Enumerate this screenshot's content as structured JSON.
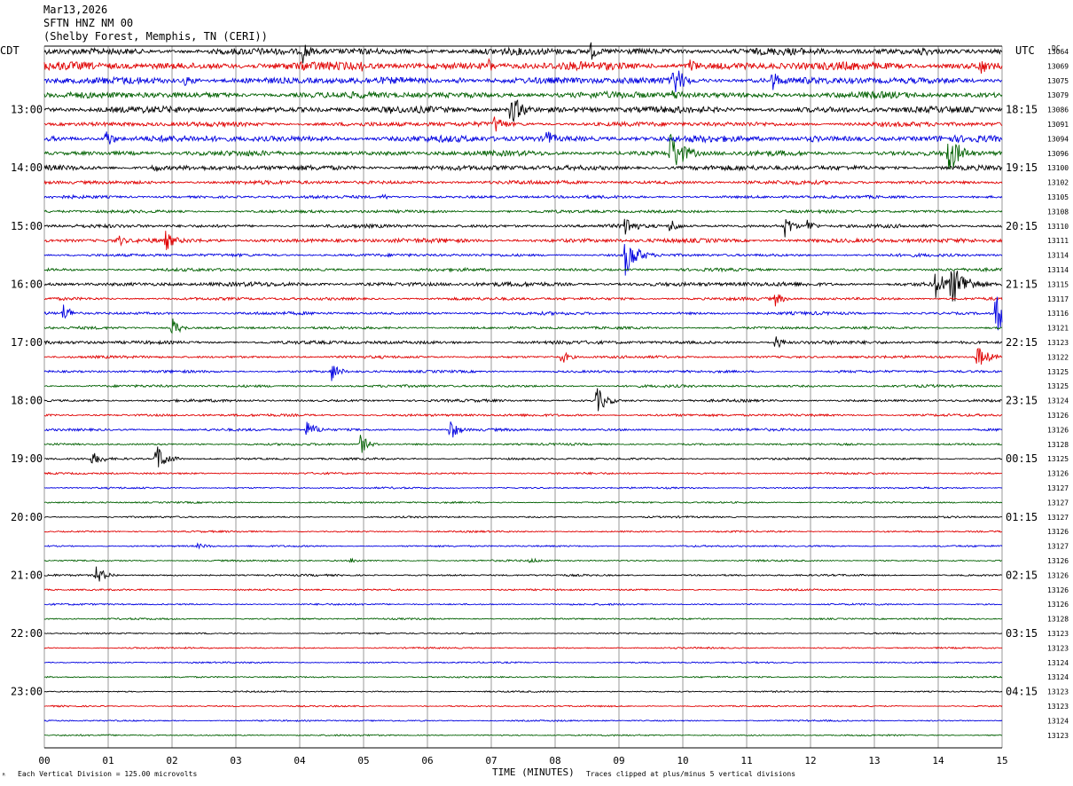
{
  "header": {
    "date": "Mar13,2026",
    "station": "SFTN HNZ NM 00",
    "location": "(Shelby Forest, Memphis, TN (CERI))"
  },
  "left_tz": "CDT",
  "right_tz": "UTC",
  "right_column_label": "DC",
  "left_hour_labels": [
    "13:00",
    "14:00",
    "15:00",
    "16:00",
    "17:00",
    "18:00",
    "19:00",
    "20:00",
    "21:00",
    "22:00",
    "23:00"
  ],
  "right_hour_labels": [
    "18:15",
    "19:15",
    "20:15",
    "21:15",
    "22:15",
    "23:15",
    "00:15",
    "01:15",
    "02:15",
    "03:15",
    "04:15"
  ],
  "footer": {
    "scale_note": "Each Vertical Division =  125.00 microvolts",
    "xlabel": "TIME (MINUTES)",
    "clip_note": "Traces clipped at plus/minus 5 vertical divisions"
  },
  "colors": {
    "trace_cycle": [
      "#000000",
      "#e00000",
      "#0000e0",
      "#006000"
    ],
    "gridline": "#808080"
  },
  "chart_data": {
    "type": "line",
    "title": "SFTN HNZ NM 00",
    "xlabel": "TIME (MINUTES)",
    "x_ticks": [
      "00",
      "01",
      "02",
      "03",
      "04",
      "05",
      "06",
      "07",
      "08",
      "09",
      "10",
      "11",
      "12",
      "13",
      "14",
      "15"
    ],
    "xlim": [
      0,
      15
    ],
    "trace_count": 48,
    "minutes_per_trace": 15,
    "dc_offsets": [
      "13064",
      "13069",
      "13075",
      "13079",
      "13086",
      "13091",
      "13094",
      "13096",
      "13100",
      "13102",
      "13105",
      "13108",
      "13110",
      "13111",
      "13114",
      "13114",
      "13115",
      "13117",
      "13116",
      "13121",
      "13123",
      "13122",
      "13125",
      "13125",
      "13124",
      "13126",
      "13126",
      "13128",
      "13125",
      "13126",
      "13127",
      "13127",
      "13127",
      "13126",
      "13127",
      "13126",
      "13126",
      "13126",
      "13126",
      "13128",
      "13123",
      "13123",
      "13124",
      "13124",
      "13123",
      "13123",
      "13124",
      "13123"
    ],
    "noise_levels": [
      3.2,
      3.8,
      3.2,
      3.0,
      3.0,
      2.2,
      3.0,
      2.4,
      2.4,
      1.8,
      1.4,
      1.4,
      1.6,
      2.0,
      1.4,
      1.4,
      2.0,
      1.4,
      1.4,
      1.2,
      1.6,
      1.2,
      1.2,
      1.2,
      1.2,
      1.2,
      1.2,
      1.0,
      1.0,
      0.9,
      0.8,
      0.8,
      0.8,
      0.8,
      0.8,
      0.8,
      0.9,
      0.8,
      0.8,
      0.8,
      0.7,
      0.7,
      0.7,
      0.7,
      0.7,
      0.7,
      0.7,
      0.7
    ],
    "events": [
      {
        "trace": 0,
        "minute": 4.05,
        "amplitude": 14,
        "duration": 0.2
      },
      {
        "trace": 0,
        "minute": 8.55,
        "amplitude": 12,
        "duration": 0.2
      },
      {
        "trace": 0,
        "minute": 13.7,
        "amplitude": 6,
        "duration": 0.6
      },
      {
        "trace": 1,
        "minute": 4.95,
        "amplitude": 8,
        "duration": 0.15
      },
      {
        "trace": 1,
        "minute": 6.95,
        "amplitude": 10,
        "duration": 0.2
      },
      {
        "trace": 1,
        "minute": 10.1,
        "amplitude": 10,
        "duration": 0.25
      },
      {
        "trace": 1,
        "minute": 14.65,
        "amplitude": 13,
        "duration": 0.2
      },
      {
        "trace": 2,
        "minute": 2.2,
        "amplitude": 6,
        "duration": 0.4
      },
      {
        "trace": 2,
        "minute": 6.45,
        "amplitude": 6,
        "duration": 0.2
      },
      {
        "trace": 2,
        "minute": 9.85,
        "amplitude": 22,
        "duration": 0.25
      },
      {
        "trace": 2,
        "minute": 11.4,
        "amplitude": 14,
        "duration": 0.2
      },
      {
        "trace": 3,
        "minute": 9.8,
        "amplitude": 7,
        "duration": 0.6
      },
      {
        "trace": 4,
        "minute": 7.3,
        "amplitude": 18,
        "duration": 0.35
      },
      {
        "trace": 4,
        "minute": 5.4,
        "amplitude": 6,
        "duration": 0.3
      },
      {
        "trace": 5,
        "minute": 7.05,
        "amplitude": 12,
        "duration": 0.25
      },
      {
        "trace": 6,
        "minute": 0.95,
        "amplitude": 14,
        "duration": 0.2
      },
      {
        "trace": 6,
        "minute": 7.85,
        "amplitude": 14,
        "duration": 0.2
      },
      {
        "trace": 6,
        "minute": 12.0,
        "amplitude": 4,
        "duration": 0.8
      },
      {
        "trace": 7,
        "minute": 9.8,
        "amplitude": 26,
        "duration": 0.35
      },
      {
        "trace": 7,
        "minute": 14.15,
        "amplitude": 26,
        "duration": 0.3
      },
      {
        "trace": 8,
        "minute": 1.7,
        "amplitude": 6,
        "duration": 0.3
      },
      {
        "trace": 10,
        "minute": 5.3,
        "amplitude": 5,
        "duration": 0.15
      },
      {
        "trace": 12,
        "minute": 9.1,
        "amplitude": 14,
        "duration": 0.25
      },
      {
        "trace": 12,
        "minute": 9.8,
        "amplitude": 10,
        "duration": 0.2
      },
      {
        "trace": 12,
        "minute": 11.6,
        "amplitude": 14,
        "duration": 0.2
      },
      {
        "trace": 12,
        "minute": 11.95,
        "amplitude": 9,
        "duration": 0.2
      },
      {
        "trace": 13,
        "minute": 1.15,
        "amplitude": 8,
        "duration": 0.2
      },
      {
        "trace": 13,
        "minute": 1.9,
        "amplitude": 12,
        "duration": 0.25
      },
      {
        "trace": 14,
        "minute": 9.1,
        "amplitude": 24,
        "duration": 0.3
      },
      {
        "trace": 16,
        "minute": 13.95,
        "amplitude": 18,
        "duration": 0.3
      },
      {
        "trace": 16,
        "minute": 14.2,
        "amplitude": 26,
        "duration": 0.4
      },
      {
        "trace": 17,
        "minute": 11.45,
        "amplitude": 9,
        "duration": 0.2
      },
      {
        "trace": 18,
        "minute": 0.3,
        "amplitude": 12,
        "duration": 0.2
      },
      {
        "trace": 18,
        "minute": 14.9,
        "amplitude": 26,
        "duration": 0.3
      },
      {
        "trace": 19,
        "minute": 2.0,
        "amplitude": 12,
        "duration": 0.2
      },
      {
        "trace": 20,
        "minute": 11.45,
        "amplitude": 9,
        "duration": 0.2
      },
      {
        "trace": 21,
        "minute": 8.1,
        "amplitude": 9,
        "duration": 0.2
      },
      {
        "trace": 21,
        "minute": 14.6,
        "amplitude": 14,
        "duration": 0.3
      },
      {
        "trace": 22,
        "minute": 4.5,
        "amplitude": 12,
        "duration": 0.2
      },
      {
        "trace": 24,
        "minute": 8.65,
        "amplitude": 16,
        "duration": 0.25
      },
      {
        "trace": 26,
        "minute": 4.1,
        "amplitude": 10,
        "duration": 0.3
      },
      {
        "trace": 26,
        "minute": 6.35,
        "amplitude": 14,
        "duration": 0.2
      },
      {
        "trace": 27,
        "minute": 4.95,
        "amplitude": 12,
        "duration": 0.2
      },
      {
        "trace": 28,
        "minute": 0.75,
        "amplitude": 8,
        "duration": 0.3
      },
      {
        "trace": 28,
        "minute": 1.75,
        "amplitude": 18,
        "duration": 0.25
      },
      {
        "trace": 34,
        "minute": 2.4,
        "amplitude": 3,
        "duration": 0.4
      },
      {
        "trace": 35,
        "minute": 4.8,
        "amplitude": 3,
        "duration": 0.3
      },
      {
        "trace": 35,
        "minute": 7.6,
        "amplitude": 3,
        "duration": 0.4
      },
      {
        "trace": 36,
        "minute": 0.8,
        "amplitude": 12,
        "duration": 0.25
      }
    ]
  }
}
